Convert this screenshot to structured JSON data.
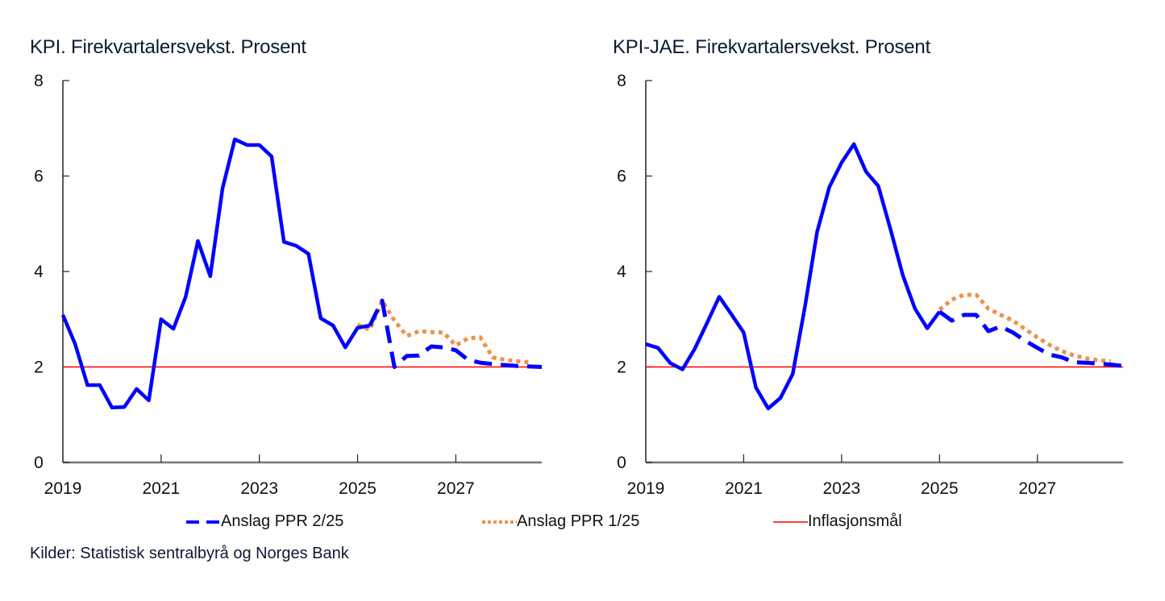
{
  "chart_data": [
    {
      "type": "line",
      "title": "KPI. Firekvartalersvekst. Prosent",
      "xlabel": "",
      "ylabel": "",
      "x_unit": "quarter",
      "x_start": "2019Q1",
      "x_end": "2028Q4",
      "xticks": [
        "2019",
        "2021",
        "2023",
        "2025",
        "2027"
      ],
      "yticks": [
        0,
        2,
        4,
        6,
        8
      ],
      "ylim": [
        0,
        8
      ],
      "grid": false,
      "series": [
        {
          "name": "KPI",
          "style": "solid",
          "color": "#0000ff",
          "start_index": 0,
          "values": [
            3.09,
            2.48,
            1.62,
            1.62,
            1.15,
            1.16,
            1.54,
            1.3,
            3.0,
            2.8,
            3.47,
            4.64,
            3.9,
            5.74,
            6.77,
            6.65,
            6.65,
            6.41,
            4.62,
            4.54,
            4.37,
            3.02,
            2.87,
            2.41,
            2.82,
            2.87
          ]
        },
        {
          "name": "Anslag PPR 2/25",
          "style": "dashed",
          "color": "#0000ff",
          "start_index": 25,
          "values": [
            2.87,
            3.39,
            2.0,
            2.23,
            2.24,
            2.43,
            2.41,
            2.35,
            2.15,
            2.09,
            2.06,
            2.04,
            2.02,
            2.01,
            2.0
          ]
        },
        {
          "name": "Anslag PPR 1/25",
          "style": "dotted",
          "color": "#f0904a",
          "start_index": 24,
          "values": [
            2.89,
            2.78,
            3.39,
            2.97,
            2.65,
            2.75,
            2.73,
            2.72,
            2.45,
            2.6,
            2.62,
            2.2,
            2.15,
            2.12,
            2.1
          ]
        },
        {
          "name": "Inflasjonsmål",
          "style": "solid-thin",
          "color": "#ff0000",
          "constant": 2.0
        }
      ]
    },
    {
      "type": "line",
      "title": "KPI-JAE. Firekvartalersvekst. Prosent",
      "xlabel": "",
      "ylabel": "",
      "x_unit": "quarter",
      "x_start": "2019Q1",
      "x_end": "2028Q4",
      "xticks": [
        "2019",
        "2021",
        "2023",
        "2025",
        "2027"
      ],
      "yticks": [
        0,
        2,
        4,
        6,
        8
      ],
      "ylim": [
        0,
        8
      ],
      "grid": false,
      "series": [
        {
          "name": "KPI-JAE",
          "style": "solid",
          "color": "#0000ff",
          "start_index": 0,
          "values": [
            2.48,
            2.4,
            2.08,
            1.95,
            2.38,
            2.92,
            3.47,
            3.1,
            2.72,
            1.57,
            1.13,
            1.35,
            1.85,
            3.25,
            4.83,
            5.77,
            6.28,
            6.67,
            6.09,
            5.79,
            4.88,
            3.92,
            3.22,
            2.81,
            3.16
          ]
        },
        {
          "name": "Anslag PPR 2/25",
          "style": "dashed",
          "color": "#0000ff",
          "start_index": 24,
          "values": [
            3.16,
            2.97,
            3.09,
            3.09,
            2.75,
            2.85,
            2.72,
            2.55,
            2.4,
            2.26,
            2.2,
            2.1,
            2.09,
            2.07,
            2.05,
            2.02
          ]
        },
        {
          "name": "Anslag PPR 1/25",
          "style": "dotted",
          "color": "#f0904a",
          "start_index": 24,
          "values": [
            3.2,
            3.41,
            3.51,
            3.51,
            3.22,
            3.09,
            2.97,
            2.79,
            2.62,
            2.46,
            2.33,
            2.24,
            2.18,
            2.14,
            2.12
          ]
        },
        {
          "name": "Inflasjonsmål",
          "style": "solid-thin",
          "color": "#ff0000",
          "constant": 2.0
        }
      ]
    }
  ],
  "legend": {
    "placement": "bottom-center",
    "items": [
      {
        "label": "Anslag PPR 2/25",
        "style": "dashed",
        "color": "#0000ff"
      },
      {
        "label": "Anslag PPR 1/25",
        "style": "dotted",
        "color": "#f0904a"
      },
      {
        "label": "Inflasjonsmål",
        "style": "solid-thin",
        "color": "#ff0000"
      }
    ]
  },
  "source": "Kilder: Statistisk sentralbyrå og Norges Bank"
}
